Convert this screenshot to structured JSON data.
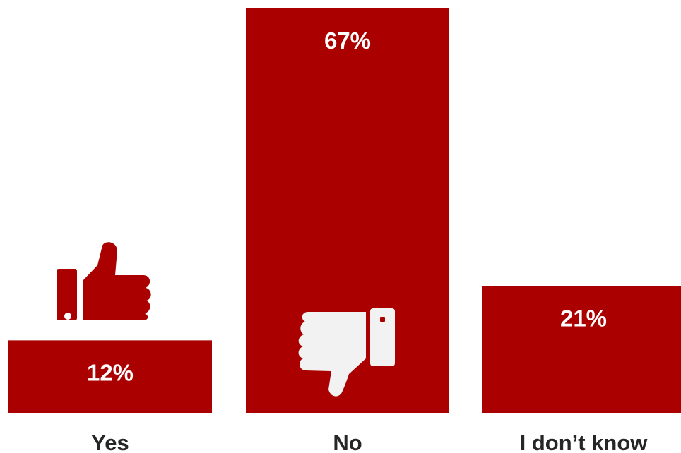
{
  "chart_data": {
    "type": "bar",
    "categories": [
      "Yes",
      "No",
      "I don’t know"
    ],
    "values": [
      12,
      67,
      21
    ],
    "value_labels": [
      "12%",
      "67%",
      "21%"
    ],
    "unit": "%",
    "ylim": [
      0,
      67
    ],
    "grid": false,
    "legend": "none",
    "bar_color": "#AA0000",
    "icons": [
      "thumbs-up-icon",
      "",
      "thumbs-down-icon"
    ],
    "icon_color_yes": "#AA0000",
    "icon_color_no": "#F2F2F2"
  }
}
